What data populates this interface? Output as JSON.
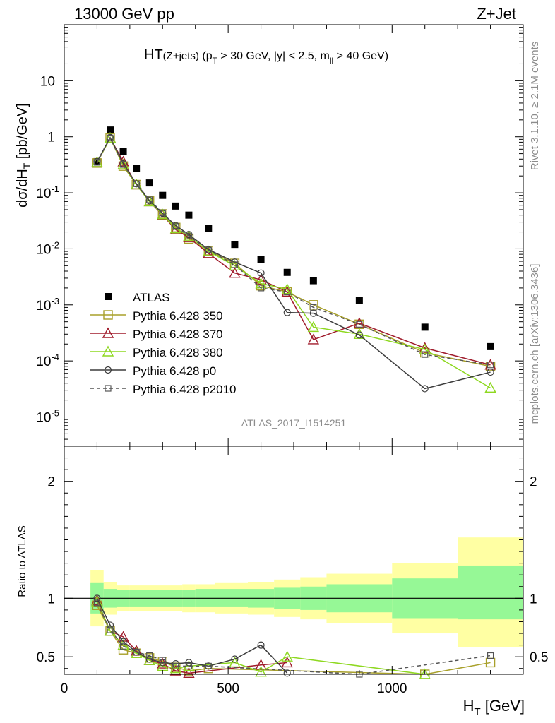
{
  "header": {
    "left": "13000 GeV pp",
    "right": "Z+Jet",
    "title_main": "HT",
    "title_sub": "(Z+jets)",
    "title_cuts_a": " (p",
    "title_cuts_a_sub": "T",
    "title_cuts_b": " > 30 GeV, |y| < 2.5, m",
    "title_cuts_b_sub": "ll",
    "title_cuts_c": " > 40 GeV)"
  },
  "side": {
    "rivet": "Rivet 3.1.10, ≥ 2.1M events",
    "mcplots": "mcplots.cern.ch [arXiv:1306.3436]"
  },
  "analysis_id": "ATLAS_2017_I1514251",
  "axes": {
    "ylabel_main": "dσ/dH",
    "ylabel_main_sub": "T",
    "ylabel_main_unit": " [pb/GeV]",
    "ylabel_ratio": "Ratio to ATLAS",
    "xlabel": "H",
    "xlabel_sub": "T",
    "xlabel_unit": " [GeV]"
  },
  "chart_data": [
    {
      "type": "scatter",
      "panel": "main",
      "yscale": "log",
      "xlim": [
        0,
        1400
      ],
      "ylim": [
        3e-06,
        100
      ],
      "x_ticks": [
        "0",
        "500",
        "1000"
      ],
      "y_ticks": [
        "10",
        "1",
        "10^-1",
        "10^-2",
        "10^-3",
        "10^-4",
        "10^-5"
      ],
      "legend_position": "lower-left",
      "series": [
        {
          "name": "ATLAS",
          "color": "#000000",
          "marker": "filled-square",
          "x": [
            100,
            140,
            180,
            220,
            260,
            300,
            340,
            380,
            440,
            520,
            600,
            680,
            760,
            900,
            1100,
            1300
          ],
          "y": [
            0.36,
            1.32,
            0.54,
            0.27,
            0.15,
            0.09,
            0.058,
            0.04,
            0.023,
            0.012,
            0.0065,
            0.0038,
            0.0027,
            0.0012,
            0.0004,
            0.00018
          ]
        },
        {
          "name": "Pythia 6.428 350",
          "color": "#a8a02a",
          "marker": "open-square",
          "x": [
            100,
            140,
            180,
            220,
            260,
            300,
            340,
            380,
            440,
            520,
            600,
            680,
            760,
            900,
            1100,
            1300
          ],
          "y": [
            0.34,
            0.95,
            0.3,
            0.14,
            0.073,
            0.042,
            0.024,
            0.015,
            0.0093,
            0.0055,
            0.0022,
            0.0017,
            0.001,
            0.00045,
            0.00014,
            8e-05
          ]
        },
        {
          "name": "Pythia 6.428 370",
          "color": "#a01c2c",
          "marker": "open-triangle",
          "x": [
            100,
            140,
            180,
            220,
            260,
            300,
            340,
            380,
            440,
            520,
            600,
            680,
            760,
            900,
            1100,
            1300
          ],
          "y": [
            0.35,
            0.95,
            0.36,
            0.14,
            0.07,
            0.04,
            0.022,
            0.016,
            0.0083,
            0.0037,
            0.0028,
            0.0017,
            0.00024,
            0.00047,
            0.00017,
            8.5e-05
          ]
        },
        {
          "name": "Pythia 6.428 380",
          "color": "#8ed820",
          "marker": "open-triangle",
          "x": [
            100,
            140,
            180,
            220,
            260,
            300,
            340,
            380,
            440,
            520,
            600,
            680,
            760,
            900,
            1100,
            1300
          ],
          "y": [
            0.35,
            0.95,
            0.32,
            0.14,
            0.07,
            0.041,
            0.023,
            0.017,
            0.009,
            0.005,
            0.0024,
            0.0019,
            0.0004,
            0.0003,
            0.00016,
            3.3e-05
          ]
        },
        {
          "name": "Pythia 6.428 p0",
          "color": "#3c3c3c",
          "marker": "open-circle",
          "x": [
            100,
            140,
            180,
            220,
            260,
            300,
            340,
            380,
            440,
            520,
            600,
            680,
            760,
            900,
            1100,
            1300
          ],
          "y": [
            0.36,
            0.97,
            0.33,
            0.145,
            0.072,
            0.043,
            0.026,
            0.018,
            0.0097,
            0.0058,
            0.0037,
            0.00073,
            0.00071,
            0.00029,
            3.2e-05,
            6.3e-05
          ]
        },
        {
          "name": "Pythia 6.428 p2010",
          "color": "#555555",
          "marker": "open-square-small",
          "dashed": true,
          "x": [
            100,
            140,
            180,
            220,
            260,
            300,
            340,
            380,
            440,
            520,
            600,
            680,
            760,
            900,
            1100,
            1300
          ],
          "y": [
            0.35,
            0.95,
            0.32,
            0.145,
            0.075,
            0.044,
            0.025,
            0.017,
            0.0095,
            0.0052,
            0.002,
            0.0017,
            0.0009,
            0.00045,
            0.00013,
            8.5e-05
          ]
        }
      ]
    },
    {
      "type": "line",
      "panel": "ratio",
      "xlim": [
        0,
        1400
      ],
      "ylim": [
        0.35,
        2.3
      ],
      "y_ticks": [
        "0.5",
        "1",
        "2"
      ],
      "reference_line": 1,
      "uncertainty_bands": {
        "edges": [
          80,
          120,
          160,
          200,
          240,
          280,
          320,
          360,
          400,
          460,
          560,
          640,
          720,
          800,
          1000,
          1200,
          1400
        ],
        "inner_low": [
          0.87,
          0.92,
          0.93,
          0.93,
          0.93,
          0.93,
          0.93,
          0.93,
          0.93,
          0.93,
          0.92,
          0.91,
          0.9,
          0.88,
          0.83,
          0.82
        ],
        "inner_high": [
          1.13,
          1.08,
          1.07,
          1.07,
          1.07,
          1.07,
          1.07,
          1.07,
          1.08,
          1.08,
          1.08,
          1.09,
          1.1,
          1.12,
          1.17,
          1.28
        ],
        "outer_low": [
          0.76,
          0.86,
          0.89,
          0.89,
          0.89,
          0.89,
          0.89,
          0.88,
          0.88,
          0.87,
          0.86,
          0.84,
          0.82,
          0.79,
          0.7,
          0.58
        ],
        "outer_high": [
          1.24,
          1.14,
          1.11,
          1.11,
          1.11,
          1.11,
          1.11,
          1.12,
          1.12,
          1.13,
          1.14,
          1.16,
          1.18,
          1.21,
          1.3,
          1.52
        ]
      },
      "series": [
        {
          "name": "Pythia 6.428 350",
          "color": "#a8a02a",
          "x": [
            100,
            140,
            180,
            220,
            260,
            300,
            340,
            380,
            440,
            1100,
            1300
          ],
          "y": [
            0.94,
            0.72,
            0.56,
            0.53,
            0.49,
            0.46,
            0.41,
            0.38,
            0.4,
            0.35,
            0.45
          ]
        },
        {
          "name": "Pythia 6.428 370",
          "color": "#a01c2c",
          "x": [
            100,
            140,
            180,
            220,
            260,
            300,
            340,
            380,
            600,
            680
          ],
          "y": [
            0.98,
            0.72,
            0.67,
            0.55,
            0.47,
            0.44,
            0.38,
            0.36,
            0.43,
            0.45
          ]
        },
        {
          "name": "Pythia 6.428 380",
          "color": "#8ed820",
          "x": [
            100,
            140,
            180,
            220,
            260,
            300,
            340,
            380,
            520,
            600,
            680,
            1100
          ],
          "y": [
            0.97,
            0.72,
            0.6,
            0.53,
            0.47,
            0.42,
            0.4,
            0.42,
            0.45,
            0.37,
            0.5,
            0.35
          ]
        },
        {
          "name": "Pythia 6.428 p0",
          "color": "#3c3c3c",
          "x": [
            100,
            140,
            180,
            220,
            260,
            300,
            340,
            380,
            440,
            520,
            600,
            680
          ],
          "y": [
            1.0,
            0.77,
            0.63,
            0.54,
            0.48,
            0.45,
            0.44,
            0.45,
            0.42,
            0.48,
            0.6,
            0.36
          ]
        },
        {
          "name": "Pythia 6.428 p2010",
          "color": "#555555",
          "x": [
            100,
            140,
            180,
            220,
            260,
            300,
            340,
            380,
            440,
            900,
            1300
          ],
          "y": [
            0.96,
            0.73,
            0.59,
            0.54,
            0.51,
            0.47,
            0.42,
            0.42,
            0.42,
            0.35,
            0.51
          ]
        }
      ]
    }
  ]
}
